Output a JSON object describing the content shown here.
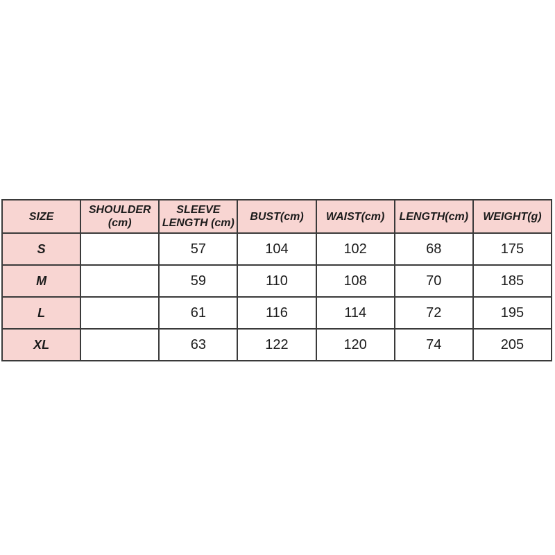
{
  "colors": {
    "page_background": "#ffffff",
    "header_cell_background": "#f8d5d2",
    "row_label_background": "#f8d5d2",
    "border": "#3a3a3a",
    "text": "#1b1b1b"
  },
  "header": {
    "size": "SIZE",
    "shoulder_line1": "SHOULDER",
    "shoulder_line2": "(cm)",
    "sleeve_line1": "SLEEVE",
    "sleeve_line2": "LENGTH (cm)",
    "bust": "BUST(cm)",
    "waist": "WAIST(cm)",
    "length": "LENGTH(cm)",
    "weight": "WEIGHT(g)"
  },
  "rows": [
    {
      "size": "S",
      "shoulder": "",
      "sleeve": "57",
      "bust": "104",
      "waist": "102",
      "length": "68",
      "weight": "175"
    },
    {
      "size": "M",
      "shoulder": "",
      "sleeve": "59",
      "bust": "110",
      "waist": "108",
      "length": "70",
      "weight": "185"
    },
    {
      "size": "L",
      "shoulder": "",
      "sleeve": "61",
      "bust": "116",
      "waist": "114",
      "length": "72",
      "weight": "195"
    },
    {
      "size": "XL",
      "shoulder": "",
      "sleeve": "63",
      "bust": "122",
      "waist": "120",
      "length": "74",
      "weight": "205"
    }
  ],
  "chart_data": {
    "type": "table",
    "columns": [
      "SIZE",
      "SHOULDER (cm)",
      "SLEEVE LENGTH (cm)",
      "BUST(cm)",
      "WAIST(cm)",
      "LENGTH(cm)",
      "WEIGHT(g)"
    ],
    "rows": [
      [
        "S",
        "",
        57,
        104,
        102,
        68,
        175
      ],
      [
        "M",
        "",
        59,
        110,
        108,
        70,
        185
      ],
      [
        "L",
        "",
        61,
        116,
        114,
        72,
        195
      ],
      [
        "XL",
        "",
        63,
        122,
        120,
        74,
        205
      ]
    ],
    "title": "",
    "notes": "Garment size chart; SHOULDER (cm) column is empty for all rows"
  }
}
